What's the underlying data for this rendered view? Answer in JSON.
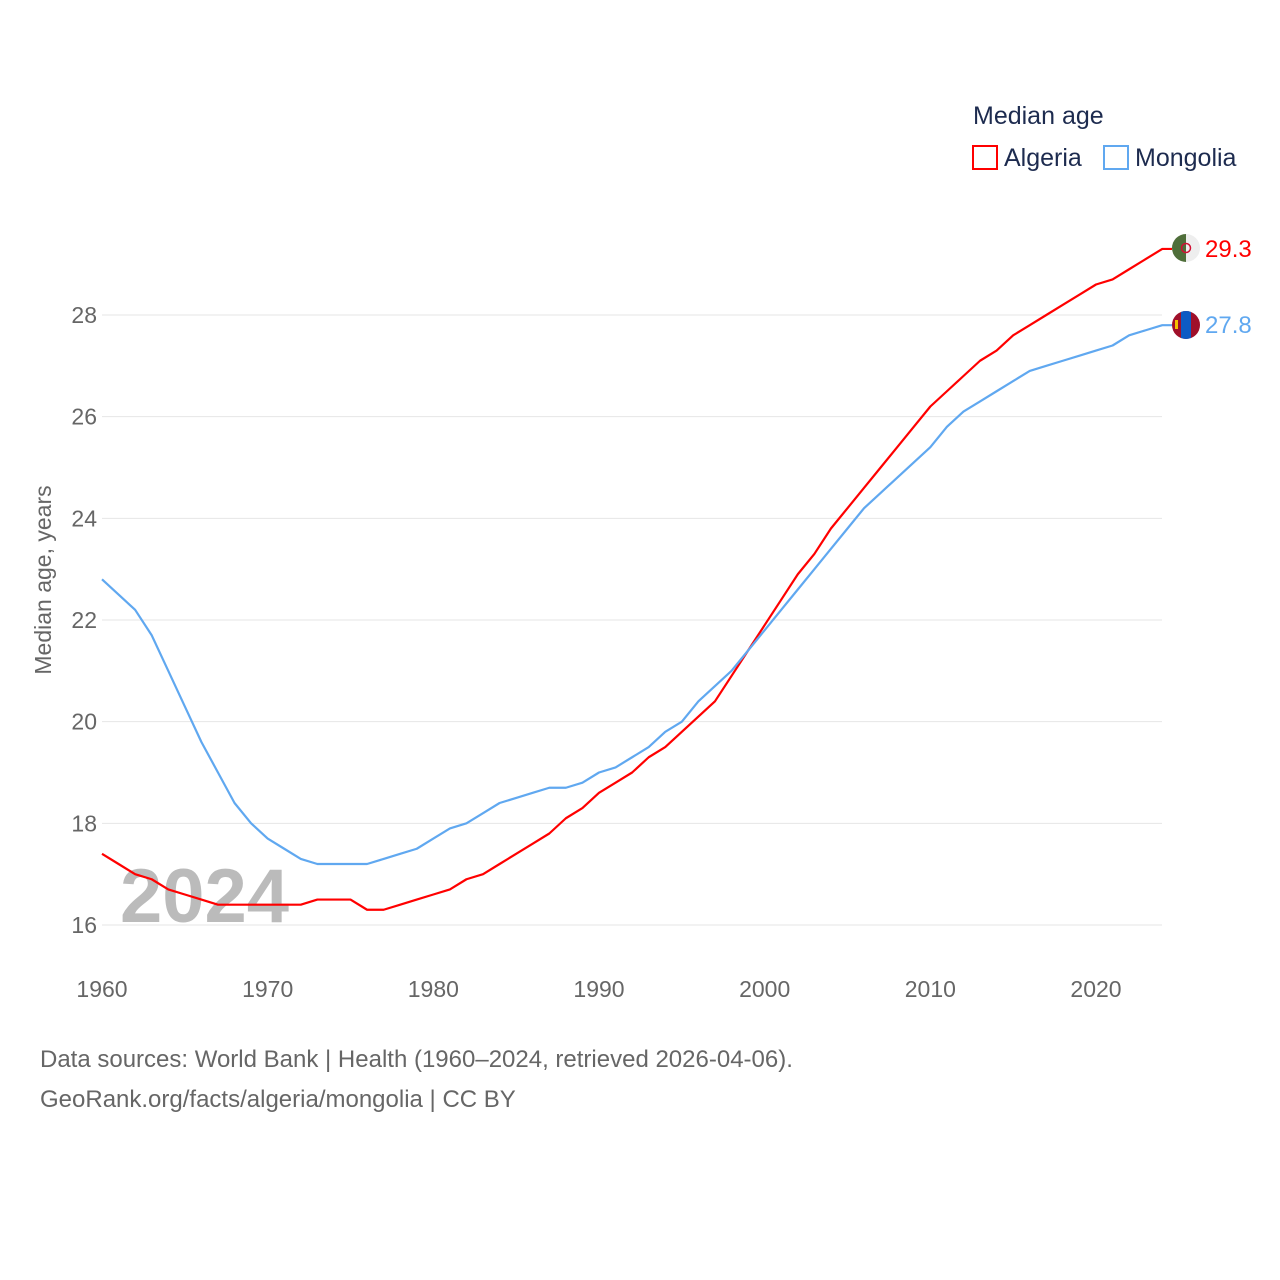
{
  "chart_data": {
    "type": "line",
    "title": "Median age",
    "xlabel": "",
    "ylabel": "Median age, years",
    "xlim": [
      1960,
      2024
    ],
    "ylim": [
      15.3,
      30.5
    ],
    "x_ticks": [
      1960,
      1970,
      1980,
      1990,
      2000,
      2010,
      2020
    ],
    "y_ticks": [
      16,
      18,
      20,
      22,
      24,
      26,
      28
    ],
    "grid": true,
    "legend_position": "top-right",
    "watermark_year": "2024",
    "x": [
      1960,
      1961,
      1962,
      1963,
      1964,
      1965,
      1966,
      1967,
      1968,
      1969,
      1970,
      1971,
      1972,
      1973,
      1974,
      1975,
      1976,
      1977,
      1978,
      1979,
      1980,
      1981,
      1982,
      1983,
      1984,
      1985,
      1986,
      1987,
      1988,
      1989,
      1990,
      1991,
      1992,
      1993,
      1994,
      1995,
      1996,
      1997,
      1998,
      1999,
      2000,
      2001,
      2002,
      2003,
      2004,
      2005,
      2006,
      2007,
      2008,
      2009,
      2010,
      2011,
      2012,
      2013,
      2014,
      2015,
      2016,
      2017,
      2018,
      2019,
      2020,
      2021,
      2022,
      2023,
      2024
    ],
    "series": [
      {
        "name": "Algeria",
        "color": "#ff0000",
        "end_label": "29.3",
        "values": [
          17.4,
          17.2,
          17.0,
          16.9,
          16.7,
          16.6,
          16.5,
          16.4,
          16.4,
          16.4,
          16.4,
          16.4,
          16.4,
          16.5,
          16.5,
          16.5,
          16.3,
          16.3,
          16.4,
          16.5,
          16.6,
          16.7,
          16.9,
          17.0,
          17.2,
          17.4,
          17.6,
          17.8,
          18.1,
          18.3,
          18.6,
          18.8,
          19.0,
          19.3,
          19.5,
          19.8,
          20.1,
          20.4,
          20.9,
          21.4,
          21.9,
          22.4,
          22.9,
          23.3,
          23.8,
          24.2,
          24.6,
          25.0,
          25.4,
          25.8,
          26.2,
          26.5,
          26.8,
          27.1,
          27.3,
          27.6,
          27.8,
          28.0,
          28.2,
          28.4,
          28.6,
          28.7,
          28.9,
          29.1,
          29.3
        ]
      },
      {
        "name": "Mongolia",
        "color": "#60a8f0",
        "end_label": "27.8",
        "values": [
          22.8,
          22.5,
          22.2,
          21.7,
          21.0,
          20.3,
          19.6,
          19.0,
          18.4,
          18.0,
          17.7,
          17.5,
          17.3,
          17.2,
          17.2,
          17.2,
          17.2,
          17.3,
          17.4,
          17.5,
          17.7,
          17.9,
          18.0,
          18.2,
          18.4,
          18.5,
          18.6,
          18.7,
          18.7,
          18.8,
          19.0,
          19.1,
          19.3,
          19.5,
          19.8,
          20.0,
          20.4,
          20.7,
          21.0,
          21.4,
          21.8,
          22.2,
          22.6,
          23.0,
          23.4,
          23.8,
          24.2,
          24.5,
          24.8,
          25.1,
          25.4,
          25.8,
          26.1,
          26.3,
          26.5,
          26.7,
          26.9,
          27.0,
          27.1,
          27.2,
          27.3,
          27.4,
          27.6,
          27.7,
          27.8
        ]
      }
    ]
  },
  "footer": {
    "line1": "Data sources: World Bank | Health (1960–2024, retrieved 2026-04-06).",
    "line2": "GeoRank.org/facts/algeria/mongolia | CC BY"
  }
}
